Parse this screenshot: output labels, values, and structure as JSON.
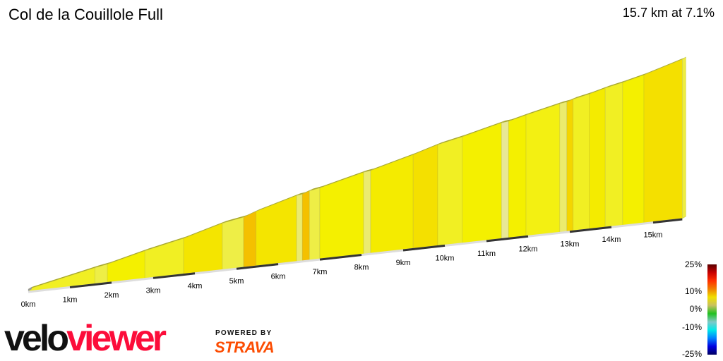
{
  "header": {
    "title": "Col de la Couillole Full",
    "summary": "15.7 km at 7.1%"
  },
  "chart_data": {
    "type": "area",
    "title": "Col de la Couillole Full",
    "total_km": 15.7,
    "avg_gradient_pct": 7.1,
    "x_ticks": [
      "0km",
      "1km",
      "2km",
      "3km",
      "4km",
      "5km",
      "6km",
      "7km",
      "8km",
      "9km",
      "10km",
      "11km",
      "12km",
      "13km",
      "14km",
      "15km"
    ],
    "segments": [
      {
        "from": 0,
        "to": 1.6,
        "grad": 6
      },
      {
        "from": 1.6,
        "to": 1.9,
        "grad": 5
      },
      {
        "from": 1.9,
        "to": 2.8,
        "grad": 7
      },
      {
        "from": 2.8,
        "to": 3.73,
        "grad": 6
      },
      {
        "from": 3.73,
        "to": 4.66,
        "grad": 8
      },
      {
        "from": 4.66,
        "to": 5.17,
        "grad": 5
      },
      {
        "from": 5.17,
        "to": 5.47,
        "grad": 10
      },
      {
        "from": 5.47,
        "to": 6.44,
        "grad": 8
      },
      {
        "from": 6.44,
        "to": 6.58,
        "grad": 4
      },
      {
        "from": 6.58,
        "to": 6.75,
        "grad": 10
      },
      {
        "from": 6.75,
        "to": 7.0,
        "grad": 5
      },
      {
        "from": 7.0,
        "to": 8.05,
        "grad": 7
      },
      {
        "from": 8.05,
        "to": 8.22,
        "grad": 4
      },
      {
        "from": 8.22,
        "to": 9.24,
        "grad": 7.5
      },
      {
        "from": 9.24,
        "to": 9.83,
        "grad": 8.5
      },
      {
        "from": 9.83,
        "to": 10.42,
        "grad": 6
      },
      {
        "from": 10.42,
        "to": 11.36,
        "grad": 7
      },
      {
        "from": 11.36,
        "to": 11.53,
        "grad": 3
      },
      {
        "from": 11.53,
        "to": 11.95,
        "grad": 7
      },
      {
        "from": 11.95,
        "to": 12.76,
        "grad": 6.5
      },
      {
        "from": 12.76,
        "to": 12.93,
        "grad": 4
      },
      {
        "from": 12.93,
        "to": 13.08,
        "grad": 9
      },
      {
        "from": 13.08,
        "to": 13.47,
        "grad": 6
      },
      {
        "from": 13.47,
        "to": 13.85,
        "grad": 7.5
      },
      {
        "from": 13.85,
        "to": 14.27,
        "grad": 6
      },
      {
        "from": 14.27,
        "to": 14.78,
        "grad": 7
      },
      {
        "from": 14.78,
        "to": 15.7,
        "grad": 8.5
      }
    ],
    "legend": {
      "labels": [
        "25%",
        "10%",
        "0%",
        "-10%",
        "-25%"
      ],
      "colors": [
        "#5a0000",
        "#c80000",
        "#ff3000",
        "#f08000",
        "#f0e000",
        "#c8c060",
        "#20c020",
        "#80c8c8",
        "#00e8e8",
        "#0080ff",
        "#0000e0",
        "#000060"
      ]
    }
  },
  "branding": {
    "logo_part1": "velo",
    "logo_part2": "viewer",
    "powered_by": "POWERED BY",
    "strava": "STRAVA"
  }
}
